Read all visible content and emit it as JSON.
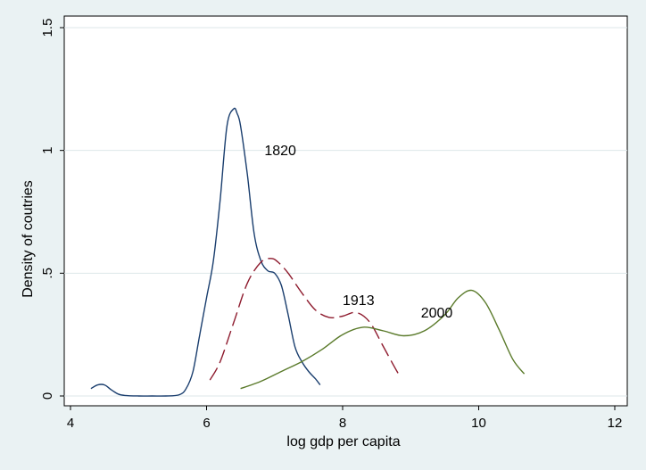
{
  "chart_data": {
    "type": "line",
    "title": "",
    "xlabel": "log gdp per capita",
    "ylabel": "Density of coutries",
    "xlim": [
      4,
      12
    ],
    "ylim": [
      0,
      1.5
    ],
    "x_ticks": [
      4,
      6,
      8,
      10,
      12
    ],
    "x_tick_labels": [
      "4",
      "6",
      "8",
      "10",
      "12"
    ],
    "y_ticks": [
      0,
      0.5,
      1,
      1.5
    ],
    "y_tick_labels": [
      "0",
      ".5",
      "1",
      "1.5"
    ],
    "grid": "horizontal",
    "legend": "none",
    "plot_background": "#ffffff",
    "page_background": "#eaf2f3",
    "gridline_color": "#dde7ea",
    "series": [
      {
        "label": "1820",
        "label_at": [
          6.85,
          0.98
        ],
        "color": "#1a3e6e",
        "dash": "solid",
        "x": [
          4.3,
          4.4,
          4.5,
          4.6,
          4.7,
          4.8,
          5.0,
          5.2,
          5.4,
          5.6,
          5.7,
          5.8,
          5.9,
          6.0,
          6.1,
          6.2,
          6.3,
          6.4,
          6.45,
          6.5,
          6.6,
          6.7,
          6.8,
          6.9,
          7.0,
          7.1,
          7.2,
          7.3,
          7.4,
          7.5,
          7.6,
          7.67
        ],
        "y": [
          0.03,
          0.045,
          0.045,
          0.025,
          0.008,
          0.002,
          0.0,
          0.0,
          0.0,
          0.005,
          0.03,
          0.1,
          0.25,
          0.4,
          0.55,
          0.8,
          1.1,
          1.17,
          1.15,
          1.1,
          0.9,
          0.66,
          0.55,
          0.51,
          0.5,
          0.45,
          0.33,
          0.2,
          0.14,
          0.1,
          0.07,
          0.045
        ]
      },
      {
        "label": "1913",
        "label_at": [
          8.0,
          0.37
        ],
        "color": "#8e1b2e",
        "dash": "long",
        "x": [
          6.05,
          6.2,
          6.4,
          6.6,
          6.8,
          6.95,
          7.05,
          7.2,
          7.4,
          7.6,
          7.8,
          8.0,
          8.2,
          8.4,
          8.6,
          8.8,
          8.85
        ],
        "y": [
          0.065,
          0.14,
          0.3,
          0.46,
          0.545,
          0.56,
          0.545,
          0.5,
          0.42,
          0.35,
          0.32,
          0.325,
          0.34,
          0.3,
          0.2,
          0.1,
          0.08
        ]
      },
      {
        "label": "2000",
        "label_at": [
          9.15,
          0.32
        ],
        "color": "#5a7a2a",
        "dash": "solid",
        "x": [
          6.5,
          6.8,
          7.1,
          7.4,
          7.7,
          8.0,
          8.3,
          8.6,
          8.9,
          9.2,
          9.5,
          9.7,
          9.9,
          10.1,
          10.3,
          10.5,
          10.67
        ],
        "y": [
          0.03,
          0.06,
          0.1,
          0.14,
          0.19,
          0.25,
          0.28,
          0.265,
          0.245,
          0.265,
          0.33,
          0.4,
          0.43,
          0.38,
          0.27,
          0.15,
          0.09
        ]
      }
    ]
  }
}
